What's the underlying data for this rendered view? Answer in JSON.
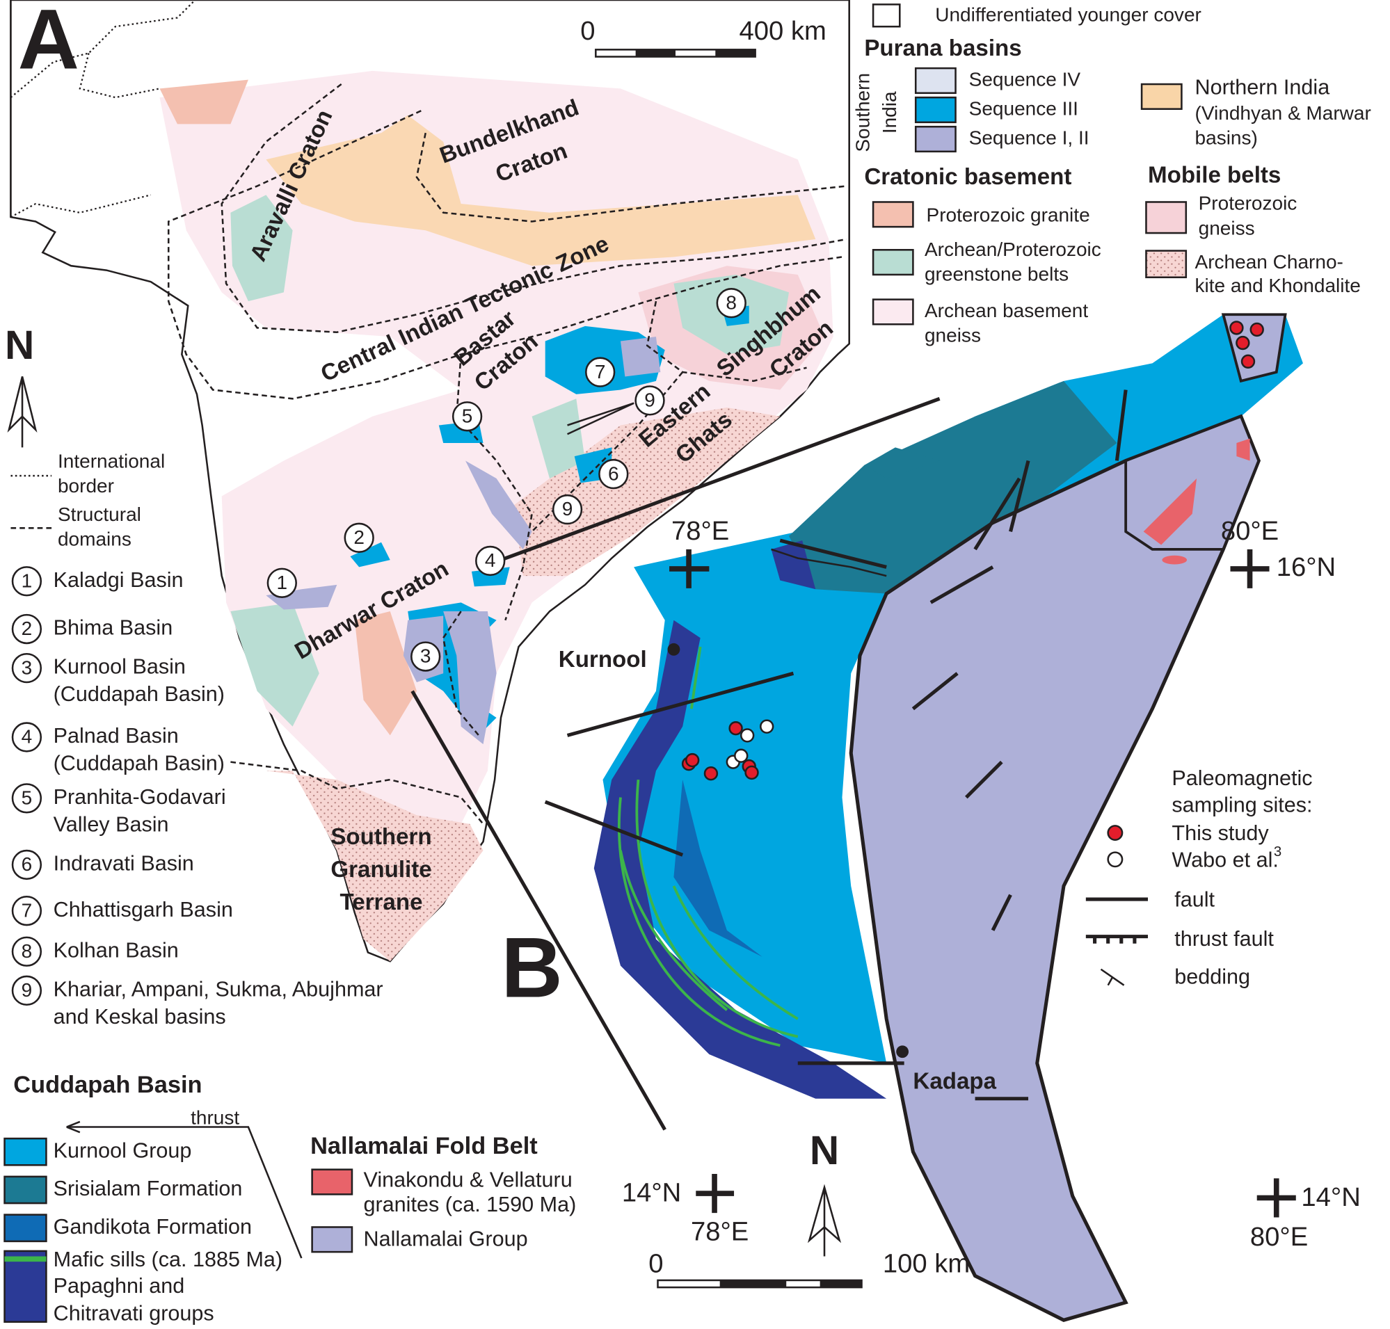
{
  "panel_a": {
    "label": "A",
    "scale_start": "0",
    "scale_end": "400 km",
    "north": "N",
    "regions": [
      {
        "lines": [
          "Aravalli Craton"
        ]
      },
      {
        "lines": [
          "Bundelkhand",
          "Craton"
        ]
      },
      {
        "lines": [
          "Central Indian Tectonic Zone"
        ]
      },
      {
        "lines": [
          "Bastar",
          "Craton"
        ]
      },
      {
        "lines": [
          "Singhbhum",
          "Craton"
        ]
      },
      {
        "lines": [
          "Eastern",
          "Ghats"
        ]
      },
      {
        "lines": [
          "Dharwar Craton"
        ]
      },
      {
        "lines": [
          "Southern",
          "Granulite",
          "Terrane"
        ]
      }
    ],
    "line_legend": [
      {
        "lines": [
          "International",
          "border"
        ]
      },
      {
        "lines": [
          "Structural",
          "domains"
        ]
      }
    ],
    "basins": [
      {
        "number": "1",
        "lines": [
          "Kaladgi Basin"
        ]
      },
      {
        "number": "2",
        "lines": [
          "Bhima Basin"
        ]
      },
      {
        "number": "3",
        "lines": [
          "Kurnool Basin",
          "(Cuddapah Basin)"
        ]
      },
      {
        "number": "4",
        "lines": [
          "Palnad Basin",
          "(Cuddapah Basin)"
        ]
      },
      {
        "number": "5",
        "lines": [
          "Pranhita-Godavari",
          "Valley Basin"
        ]
      },
      {
        "number": "6",
        "lines": [
          "Indravati Basin"
        ]
      },
      {
        "number": "7",
        "lines": [
          "Chhattisgarh Basin"
        ]
      },
      {
        "number": "8",
        "lines": [
          "Kolhan Basin"
        ]
      },
      {
        "number": "9",
        "lines": [
          "Khariar, Ampani, Sukma, Abujhmar",
          "and Keskal basins"
        ]
      }
    ]
  },
  "legend_a": {
    "cover": "Undifferentiated younger cover",
    "purana_title": "Purana basins",
    "southern_india": [
      "Southern",
      "India"
    ],
    "sequences": [
      "Sequence IV",
      "Sequence III",
      "Sequence I, II"
    ],
    "northern_india": [
      "Northern India",
      "(Vindhyan & Marwar",
      "basins)"
    ],
    "cratonic_title": "Cratonic basement",
    "cratonic": [
      {
        "lines": [
          "Proterozoic granite"
        ]
      },
      {
        "lines": [
          "Archean/Proterozoic",
          "greenstone belts"
        ]
      },
      {
        "lines": [
          "Archean basement",
          "gneiss"
        ]
      }
    ],
    "mobile_title": "Mobile belts",
    "mobile": [
      {
        "lines": [
          "Proterozoic",
          "gneiss"
        ]
      },
      {
        "lines": [
          "Archean Charno-",
          "kite and Khondalite"
        ]
      }
    ]
  },
  "panel_b": {
    "label": "B",
    "grid_labels": [
      "78°E",
      "80°E",
      "16°N",
      "14°N",
      "78°E",
      "14°N",
      "80°E"
    ],
    "towns": [
      "Kurnool",
      "Kadapa"
    ],
    "north": "N",
    "scale_start": "0",
    "scale_end": "100 km",
    "sites_title": [
      "Paleomagnetic",
      "sampling sites:"
    ],
    "sites": [
      "This study",
      "Wabo et al."
    ],
    "reference": "3",
    "symbols": [
      "fault",
      "thrust fault",
      "bedding"
    ]
  },
  "legend_b": {
    "cuddapah_title": "Cuddapah Basin",
    "thrust": "thrust",
    "cuddapah": [
      {
        "lines": [
          "Kurnool Group"
        ]
      },
      {
        "lines": [
          "Srisialam Formation"
        ]
      },
      {
        "lines": [
          "Gandikota Formation"
        ]
      },
      {
        "lines": [
          "Mafic sills (ca. 1885 Ma)"
        ]
      },
      {
        "lines": [
          "Papaghni and",
          "Chitravati groups"
        ]
      }
    ],
    "nallamalai_title": "Nallamalai Fold Belt",
    "nallamalai": [
      {
        "lines": [
          "Vinakondu & Vellaturu",
          "granites (ca. 1590 Ma)"
        ]
      },
      {
        "lines": [
          "Nallamalai Group"
        ]
      }
    ]
  }
}
